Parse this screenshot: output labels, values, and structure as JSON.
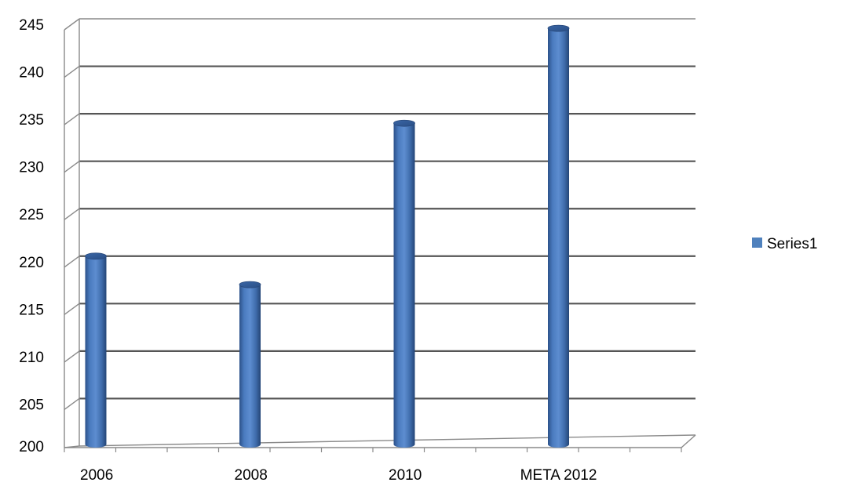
{
  "chart_data": {
    "type": "bar",
    "categories": [
      "2006",
      "2008",
      "2010",
      "META 2012"
    ],
    "series": [
      {
        "name": "Series1",
        "values": [
          220,
          217,
          234,
          244
        ],
        "color": "#4f81bd"
      }
    ],
    "ylim": [
      200,
      245
    ],
    "ytick_step": 5,
    "grid": true,
    "legend": "right",
    "style": "3d-cylinder"
  }
}
